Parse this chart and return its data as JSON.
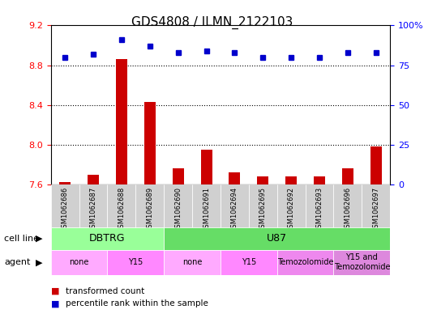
{
  "title": "GDS4808 / ILMN_2122103",
  "samples": [
    "GSM1062686",
    "GSM1062687",
    "GSM1062688",
    "GSM1062689",
    "GSM1062690",
    "GSM1062691",
    "GSM1062694",
    "GSM1062695",
    "GSM1062692",
    "GSM1062693",
    "GSM1062696",
    "GSM1062697"
  ],
  "transformed_count": [
    7.62,
    7.7,
    8.86,
    8.43,
    7.76,
    7.95,
    7.72,
    7.68,
    7.68,
    7.68,
    7.76,
    7.98
  ],
  "percentile_rank": [
    80,
    82,
    91,
    87,
    83,
    84,
    83,
    80,
    80,
    80,
    83,
    83
  ],
  "ylim_left": [
    7.6,
    9.2
  ],
  "ylim_right": [
    0,
    100
  ],
  "yticks_left": [
    7.6,
    8.0,
    8.4,
    8.8,
    9.2
  ],
  "yticks_right": [
    0,
    25,
    50,
    75,
    100
  ],
  "bar_color": "#cc0000",
  "dot_color": "#0000cc",
  "cell_line_groups": [
    {
      "label": "DBTRG",
      "start": 0,
      "end": 3,
      "color": "#99ff99"
    },
    {
      "label": "U87",
      "start": 4,
      "end": 11,
      "color": "#66dd66"
    }
  ],
  "agent_groups": [
    {
      "label": "none",
      "start": 0,
      "end": 1,
      "color": "#ffaaff"
    },
    {
      "label": "Y15",
      "start": 2,
      "end": 3,
      "color": "#ff88ff"
    },
    {
      "label": "none",
      "start": 4,
      "end": 5,
      "color": "#ffaaff"
    },
    {
      "label": "Y15",
      "start": 6,
      "end": 7,
      "color": "#ff88ff"
    },
    {
      "label": "Temozolomide",
      "start": 8,
      "end": 9,
      "color": "#ee88ee"
    },
    {
      "label": "Y15 and\nTemozolomide",
      "start": 10,
      "end": 11,
      "color": "#dd88dd"
    }
  ],
  "legend_items": [
    {
      "label": "transformed count",
      "color": "#cc0000",
      "marker": "s"
    },
    {
      "label": "percentile rank within the sample",
      "color": "#0000cc",
      "marker": "s"
    }
  ],
  "grid_dotted_yticks": [
    8.0,
    8.4,
    8.8
  ],
  "background_color": "#ffffff"
}
